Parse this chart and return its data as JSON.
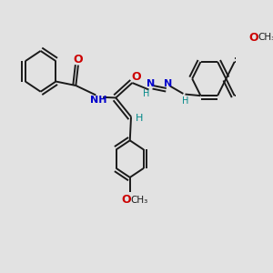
{
  "bg_color": "#e2e2e2",
  "bond_color": "#1a1a1a",
  "N_color": "#0000cc",
  "O_color": "#cc0000",
  "H_color": "#008888",
  "text_color": "#1a1a1a",
  "bond_width": 1.4,
  "figsize": [
    3.0,
    3.0
  ],
  "dpi": 100,
  "xlim": [
    0,
    10
  ],
  "ylim": [
    0,
    10
  ]
}
